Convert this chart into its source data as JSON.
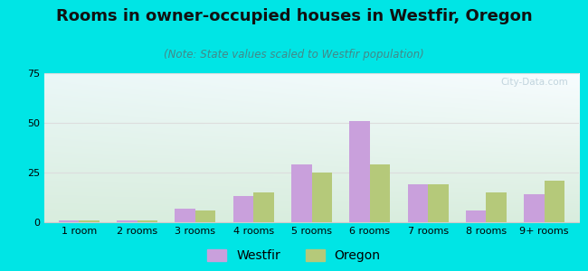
{
  "title": "Rooms in owner-occupied houses in Westfir, Oregon",
  "subtitle": "(Note: State values scaled to Westfir population)",
  "categories": [
    "1 room",
    "2 rooms",
    "3 rooms",
    "4 rooms",
    "5 rooms",
    "6 rooms",
    "7 rooms",
    "8 rooms",
    "9+ rooms"
  ],
  "westfir": [
    1,
    1,
    7,
    13,
    29,
    51,
    19,
    6,
    14
  ],
  "oregon": [
    1,
    1,
    6,
    15,
    25,
    29,
    19,
    15,
    21
  ],
  "westfir_color": "#c9a0dc",
  "oregon_color": "#b5c97a",
  "ylim": [
    0,
    75
  ],
  "yticks": [
    0,
    25,
    50,
    75
  ],
  "background_outer": "#00e5e5",
  "background_inner_topleft": "#d6efe4",
  "background_inner_topright": "#ddeef5",
  "background_inner_bottom": "#e2f0e0",
  "grid_color": "#dddddd",
  "title_fontsize": 13,
  "subtitle_fontsize": 8.5,
  "tick_fontsize": 8,
  "legend_fontsize": 10,
  "watermark_text": "City-Data.com",
  "watermark_color": "#b8cdd8"
}
